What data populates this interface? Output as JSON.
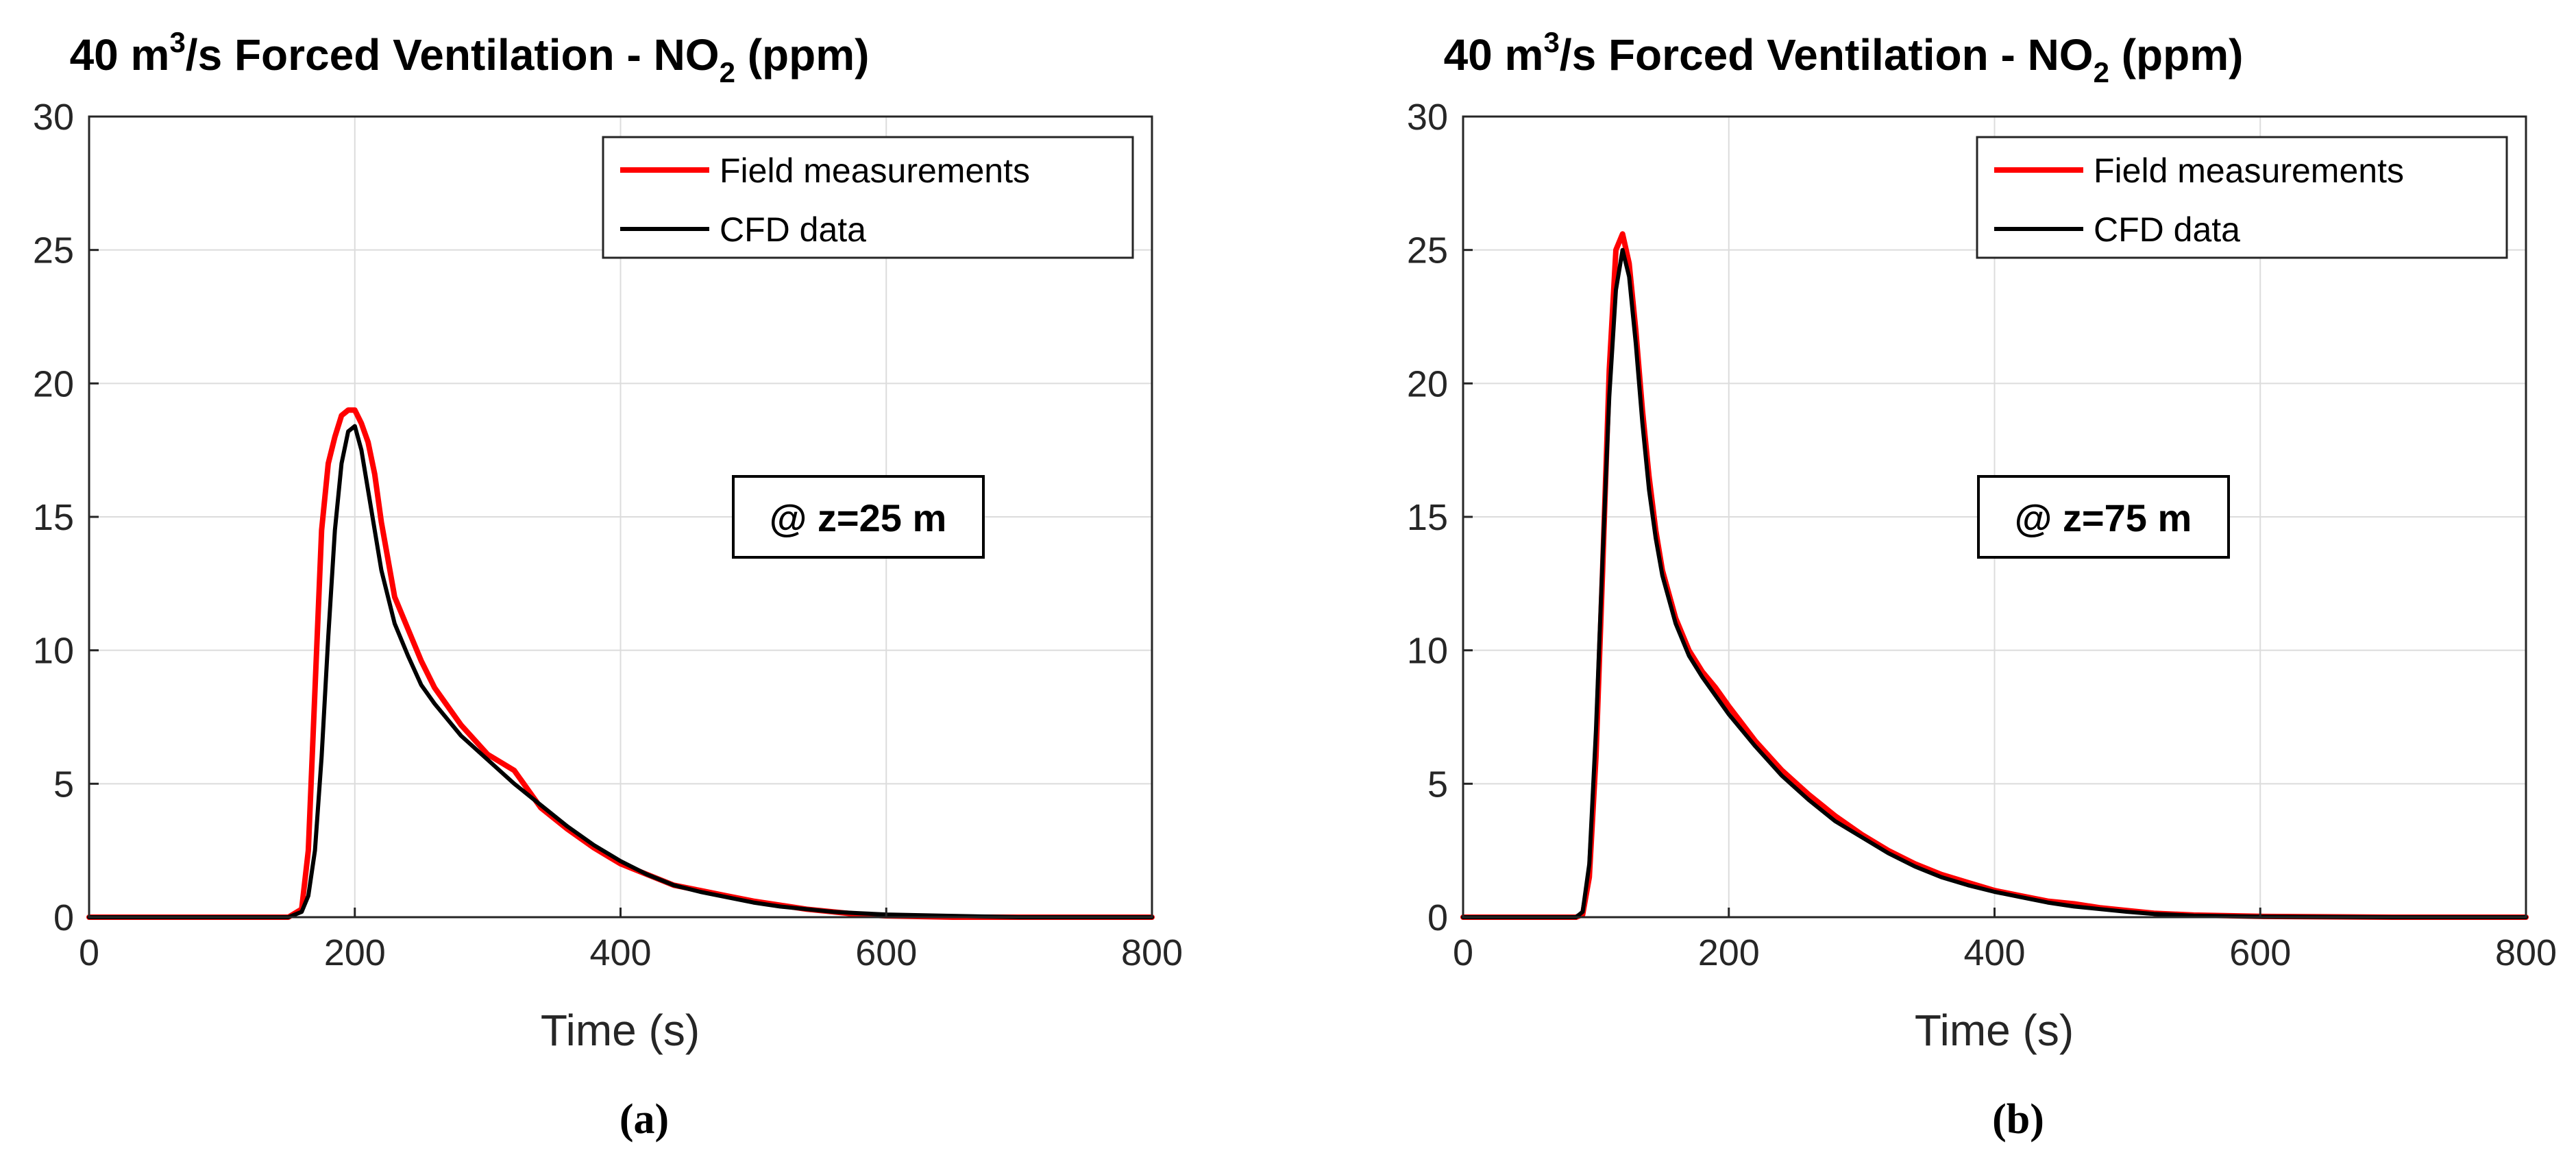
{
  "figure": {
    "captions": [
      "(a)",
      "(b)"
    ]
  },
  "chart_data": [
    {
      "type": "line",
      "title_parts": {
        "pre": "40 m",
        "sup": "3",
        "mid": "/s Forced Ventilation - NO",
        "sub": "2",
        "post": " (ppm)"
      },
      "xlabel": "Time (s)",
      "ylabel": "",
      "xlim": [
        0,
        800
      ],
      "ylim": [
        0,
        30
      ],
      "xticks": [
        0,
        200,
        400,
        600,
        800
      ],
      "yticks": [
        0,
        5,
        10,
        15,
        20,
        25,
        30
      ],
      "grid": true,
      "legend_position": "top-right",
      "annotation": "@ z=25 m",
      "series": [
        {
          "name": "Field measurements",
          "color": "#ff0000",
          "x": [
            0,
            150,
            160,
            165,
            170,
            175,
            180,
            185,
            190,
            195,
            200,
            205,
            210,
            215,
            220,
            230,
            240,
            250,
            260,
            280,
            300,
            320,
            340,
            360,
            380,
            400,
            420,
            440,
            460,
            480,
            500,
            520,
            540,
            560,
            580,
            600,
            650,
            700,
            750,
            800
          ],
          "y": [
            0,
            0,
            0.3,
            2.5,
            8.5,
            14.5,
            17.0,
            18.0,
            18.8,
            19.0,
            19.0,
            18.5,
            17.8,
            16.6,
            14.8,
            12.0,
            10.8,
            9.6,
            8.6,
            7.2,
            6.1,
            5.5,
            4.1,
            3.3,
            2.6,
            2.0,
            1.6,
            1.2,
            1.0,
            0.8,
            0.6,
            0.45,
            0.3,
            0.2,
            0.1,
            0.05,
            0.0,
            0.0,
            0.0,
            0.0
          ]
        },
        {
          "name": "CFD data",
          "color": "#000000",
          "x": [
            0,
            150,
            160,
            165,
            170,
            175,
            180,
            185,
            190,
            195,
            200,
            205,
            210,
            215,
            220,
            230,
            240,
            250,
            260,
            280,
            300,
            320,
            340,
            360,
            380,
            400,
            420,
            440,
            460,
            480,
            500,
            520,
            540,
            560,
            580,
            600,
            650,
            700,
            750,
            800
          ],
          "y": [
            0,
            0,
            0.2,
            0.8,
            2.5,
            6.0,
            10.5,
            14.5,
            17.0,
            18.2,
            18.4,
            17.5,
            16.0,
            14.5,
            13.0,
            11.0,
            9.8,
            8.7,
            8.0,
            6.8,
            5.9,
            5.0,
            4.2,
            3.4,
            2.7,
            2.1,
            1.6,
            1.2,
            0.95,
            0.75,
            0.55,
            0.4,
            0.3,
            0.2,
            0.15,
            0.1,
            0.05,
            0.0,
            0.0,
            0.0
          ]
        }
      ]
    },
    {
      "type": "line",
      "title_parts": {
        "pre": "40 m",
        "sup": "3",
        "mid": "/s Forced Ventilation - NO",
        "sub": "2",
        "post": " (ppm)"
      },
      "xlabel": "Time (s)",
      "ylabel": "",
      "xlim": [
        0,
        800
      ],
      "ylim": [
        0,
        30
      ],
      "xticks": [
        0,
        200,
        400,
        600,
        800
      ],
      "yticks": [
        0,
        5,
        10,
        15,
        20,
        25,
        30
      ],
      "grid": true,
      "legend_position": "top-right",
      "annotation": "@ z=75 m",
      "series": [
        {
          "name": "Field measurements",
          "color": "#ff0000",
          "x": [
            0,
            85,
            90,
            95,
            100,
            105,
            110,
            115,
            120,
            125,
            130,
            135,
            140,
            145,
            150,
            160,
            170,
            180,
            190,
            200,
            220,
            240,
            260,
            280,
            300,
            320,
            340,
            360,
            380,
            400,
            420,
            440,
            460,
            480,
            500,
            520,
            550,
            600,
            700,
            800
          ],
          "y": [
            0,
            0,
            0.1,
            1.5,
            6.0,
            13.0,
            20.5,
            25.0,
            25.6,
            24.5,
            22.0,
            19.0,
            16.5,
            14.5,
            13.0,
            11.2,
            10.0,
            9.2,
            8.6,
            7.9,
            6.6,
            5.5,
            4.6,
            3.8,
            3.1,
            2.5,
            2.0,
            1.6,
            1.3,
            1.0,
            0.8,
            0.6,
            0.5,
            0.35,
            0.25,
            0.15,
            0.08,
            0.03,
            0.0,
            0.0
          ]
        },
        {
          "name": "CFD data",
          "color": "#000000",
          "x": [
            0,
            85,
            90,
            95,
            100,
            105,
            110,
            115,
            120,
            125,
            130,
            135,
            140,
            145,
            150,
            160,
            170,
            180,
            190,
            200,
            220,
            240,
            260,
            280,
            300,
            320,
            340,
            360,
            380,
            400,
            420,
            440,
            460,
            480,
            500,
            520,
            550,
            600,
            700,
            800
          ],
          "y": [
            0,
            0,
            0.2,
            2.0,
            7.0,
            13.5,
            19.5,
            23.5,
            25.0,
            24.0,
            21.5,
            18.5,
            16.0,
            14.2,
            12.8,
            11.0,
            9.8,
            9.0,
            8.3,
            7.6,
            6.4,
            5.3,
            4.4,
            3.6,
            3.0,
            2.4,
            1.9,
            1.5,
            1.2,
            0.95,
            0.75,
            0.55,
            0.4,
            0.3,
            0.2,
            0.12,
            0.06,
            0.02,
            0.0,
            0.0
          ]
        }
      ]
    }
  ]
}
